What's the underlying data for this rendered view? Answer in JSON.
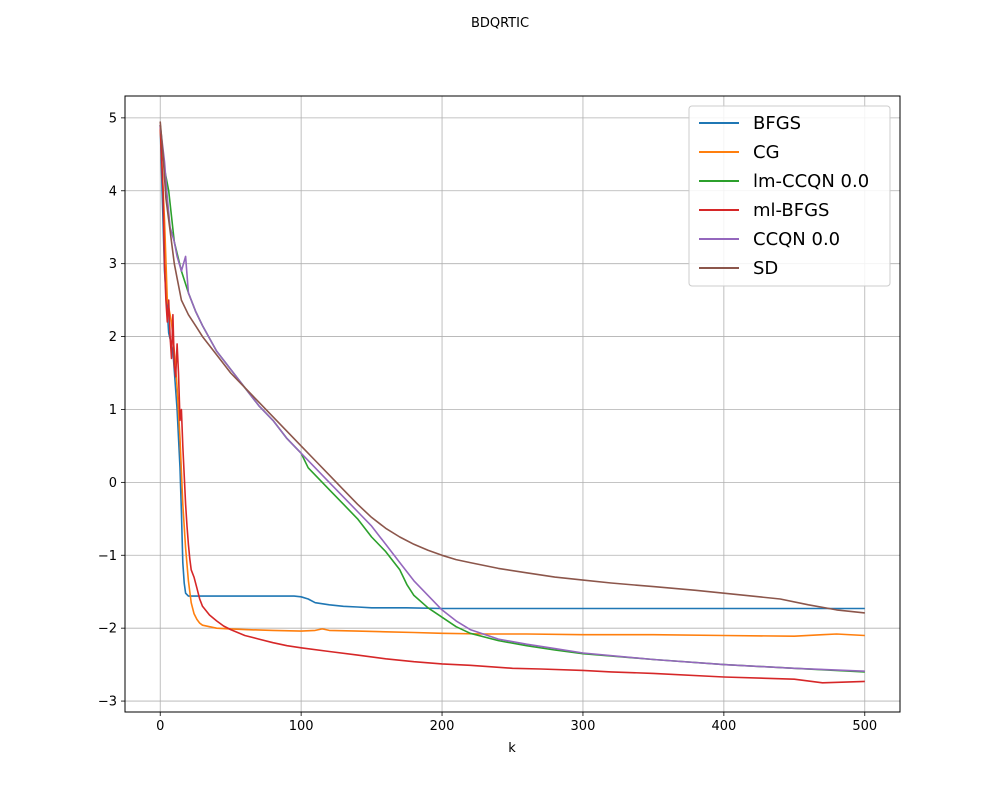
{
  "chart_data": {
    "type": "line",
    "title": "BDQRTIC",
    "xlabel": "k",
    "ylabel": "",
    "xlim": [
      -25,
      525
    ],
    "ylim": [
      -3.15,
      5.3
    ],
    "xticks": [
      0,
      100,
      200,
      300,
      400,
      500
    ],
    "yticks": [
      -3,
      -2,
      -1,
      0,
      1,
      2,
      3,
      4,
      5
    ],
    "grid": true,
    "legend_position": "top-right",
    "series": [
      {
        "name": "BFGS",
        "color": "#1f77b4",
        "x": [
          0,
          3,
          6,
          9,
          12,
          14,
          15,
          16,
          17,
          18,
          20,
          25,
          40,
          60,
          80,
          95,
          100,
          105,
          110,
          120,
          130,
          140,
          150,
          175,
          200,
          250,
          300,
          350,
          400,
          450,
          500
        ],
        "y": [
          4.9,
          2.9,
          2.05,
          1.8,
          1.0,
          0.2,
          -0.4,
          -1.1,
          -1.38,
          -1.52,
          -1.56,
          -1.56,
          -1.56,
          -1.56,
          -1.56,
          -1.56,
          -1.57,
          -1.6,
          -1.65,
          -1.68,
          -1.7,
          -1.71,
          -1.72,
          -1.72,
          -1.73,
          -1.73,
          -1.73,
          -1.73,
          -1.73,
          -1.73,
          -1.73
        ]
      },
      {
        "name": "CG",
        "color": "#ff7f0e",
        "x": [
          0,
          3,
          5,
          8,
          10,
          12,
          14,
          16,
          18,
          20,
          22,
          24,
          26,
          28,
          30,
          35,
          40,
          50,
          60,
          80,
          100,
          110,
          115,
          120,
          140,
          160,
          180,
          200,
          230,
          260,
          300,
          350,
          400,
          450,
          470,
          480,
          500
        ],
        "y": [
          4.9,
          3.6,
          2.5,
          2.2,
          1.8,
          1.3,
          0.6,
          -0.3,
          -0.9,
          -1.35,
          -1.65,
          -1.8,
          -1.88,
          -1.93,
          -1.96,
          -1.98,
          -2.0,
          -2.01,
          -2.02,
          -2.03,
          -2.04,
          -2.03,
          -2.01,
          -2.03,
          -2.04,
          -2.05,
          -2.06,
          -2.07,
          -2.08,
          -2.08,
          -2.09,
          -2.09,
          -2.1,
          -2.11,
          -2.09,
          -2.08,
          -2.1
        ]
      },
      {
        "name": "lm-CCQN 0.0",
        "color": "#2ca02c",
        "x": [
          0,
          3,
          6,
          10,
          15,
          20,
          25,
          30,
          40,
          50,
          60,
          70,
          80,
          90,
          100,
          105,
          110,
          120,
          130,
          140,
          150,
          160,
          170,
          175,
          180,
          190,
          200,
          210,
          220,
          240,
          260,
          280,
          300,
          350,
          400,
          450,
          500
        ],
        "y": [
          4.9,
          4.3,
          4.0,
          3.3,
          2.9,
          2.6,
          2.35,
          2.15,
          1.8,
          1.55,
          1.3,
          1.05,
          0.85,
          0.6,
          0.4,
          0.2,
          0.1,
          -0.1,
          -0.3,
          -0.5,
          -0.75,
          -0.95,
          -1.2,
          -1.4,
          -1.55,
          -1.72,
          -1.85,
          -1.98,
          -2.07,
          -2.17,
          -2.24,
          -2.3,
          -2.35,
          -2.43,
          -2.5,
          -2.55,
          -2.6
        ]
      },
      {
        "name": "ml-BFGS",
        "color": "#d62728",
        "x": [
          0,
          2,
          3,
          4,
          5,
          6,
          7,
          8,
          9,
          10,
          11,
          12,
          13,
          14,
          15,
          16,
          17,
          18,
          19,
          20,
          21,
          22,
          24,
          26,
          28,
          30,
          35,
          40,
          45,
          50,
          60,
          70,
          80,
          90,
          100,
          120,
          140,
          160,
          180,
          200,
          220,
          250,
          270,
          300,
          320,
          350,
          400,
          450,
          470,
          500
        ],
        "y": [
          4.9,
          4.0,
          3.0,
          2.5,
          2.2,
          2.5,
          2.0,
          1.7,
          2.3,
          1.6,
          1.45,
          1.9,
          1.5,
          0.85,
          1.0,
          0.5,
          0.1,
          -0.3,
          -0.6,
          -0.85,
          -1.05,
          -1.2,
          -1.3,
          -1.45,
          -1.6,
          -1.7,
          -1.82,
          -1.9,
          -1.97,
          -2.02,
          -2.1,
          -2.15,
          -2.2,
          -2.24,
          -2.27,
          -2.32,
          -2.37,
          -2.42,
          -2.46,
          -2.49,
          -2.51,
          -2.55,
          -2.56,
          -2.58,
          -2.6,
          -2.62,
          -2.67,
          -2.7,
          -2.75,
          -2.73
        ]
      },
      {
        "name": "CCQN 0.0",
        "color": "#9467bd",
        "x": [
          0,
          3,
          5,
          7,
          10,
          12,
          15,
          18,
          20,
          25,
          30,
          40,
          50,
          60,
          70,
          80,
          90,
          100,
          110,
          120,
          130,
          140,
          150,
          160,
          170,
          180,
          190,
          200,
          210,
          220,
          240,
          260,
          280,
          300,
          350,
          400,
          450,
          500
        ],
        "y": [
          4.9,
          4.4,
          3.9,
          3.5,
          3.3,
          3.1,
          2.9,
          3.1,
          2.6,
          2.35,
          2.15,
          1.8,
          1.55,
          1.3,
          1.05,
          0.85,
          0.6,
          0.4,
          0.2,
          0.0,
          -0.2,
          -0.4,
          -0.6,
          -0.85,
          -1.1,
          -1.35,
          -1.55,
          -1.75,
          -1.9,
          -2.02,
          -2.15,
          -2.22,
          -2.28,
          -2.34,
          -2.43,
          -2.5,
          -2.55,
          -2.59
        ]
      },
      {
        "name": "SD",
        "color": "#8c564b",
        "x": [
          0,
          2,
          4,
          6,
          8,
          10,
          12,
          15,
          20,
          25,
          30,
          40,
          50,
          60,
          70,
          80,
          90,
          100,
          110,
          120,
          130,
          140,
          150,
          160,
          170,
          180,
          190,
          200,
          210,
          220,
          240,
          260,
          280,
          300,
          320,
          350,
          380,
          400,
          420,
          440,
          460,
          480,
          500
        ],
        "y": [
          4.95,
          4.5,
          3.9,
          3.6,
          3.3,
          3.0,
          2.8,
          2.5,
          2.3,
          2.15,
          2.0,
          1.75,
          1.5,
          1.3,
          1.1,
          0.9,
          0.7,
          0.5,
          0.3,
          0.1,
          -0.1,
          -0.3,
          -0.48,
          -0.63,
          -0.75,
          -0.85,
          -0.93,
          -1.0,
          -1.06,
          -1.1,
          -1.18,
          -1.24,
          -1.3,
          -1.34,
          -1.38,
          -1.43,
          -1.48,
          -1.52,
          -1.56,
          -1.6,
          -1.68,
          -1.75,
          -1.79
        ]
      }
    ]
  }
}
